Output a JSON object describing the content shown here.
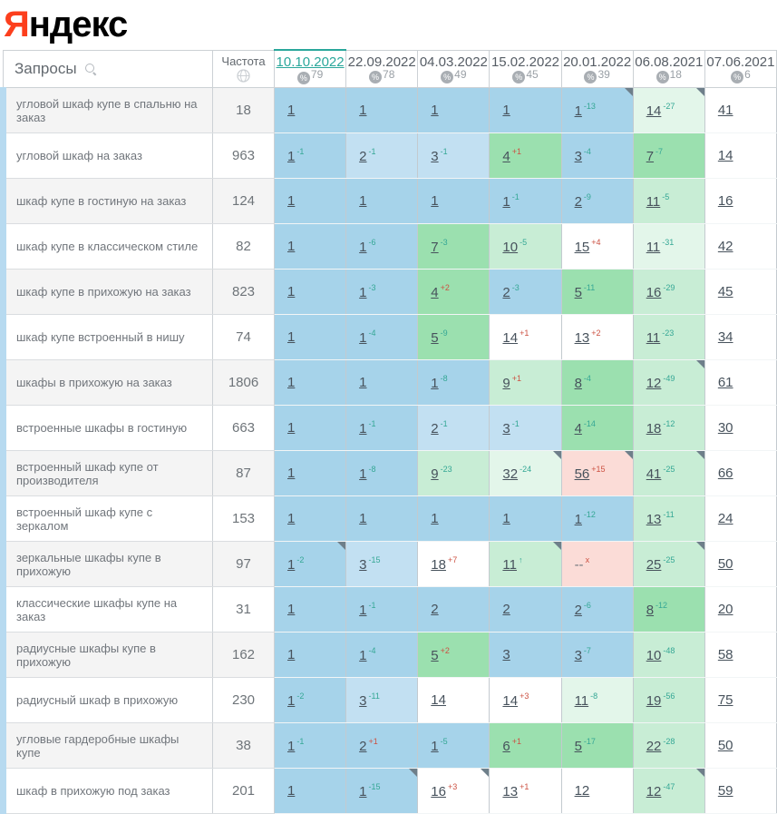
{
  "logo": {
    "first_letter": "Я",
    "rest": "ндекс"
  },
  "header": {
    "queries_label": "Запросы",
    "frequency_label": "Частота"
  },
  "columns": [
    {
      "label": "10.10.2022",
      "pct": "79",
      "current": true
    },
    {
      "label": "22.09.2022",
      "pct": "78",
      "current": false
    },
    {
      "label": "04.03.2022",
      "pct": "49",
      "current": false
    },
    {
      "label": "15.02.2022",
      "pct": "45",
      "current": false
    },
    {
      "label": "20.01.2022",
      "pct": "39",
      "current": false
    },
    {
      "label": "06.08.2021",
      "pct": "18",
      "current": false
    },
    {
      "label": "07.06.2021",
      "pct": "6",
      "current": false
    }
  ],
  "colors": {
    "logo_red": "#fc3f1d",
    "link_teal": "#2aa79b",
    "change_up": "#35a795",
    "change_down": "#cc5142",
    "cell": {
      "b1": "#a6d3ea",
      "b2": "#c2e0f2",
      "g1": "#9be0af",
      "g2": "#c8edd5",
      "g3": "#e3f6ea",
      "pk": "#fbdcd7",
      "w": "#ffffff"
    }
  },
  "rows": [
    {
      "query": "угловой шкаф купе в спальню на заказ",
      "freq": "18",
      "cells": [
        {
          "v": "1",
          "bg": "b1"
        },
        {
          "v": "1",
          "bg": "b1"
        },
        {
          "v": "1",
          "bg": "b1"
        },
        {
          "v": "1",
          "bg": "b1"
        },
        {
          "v": "1",
          "chg": "-13",
          "dir": "up",
          "bg": "b1",
          "flag": true
        },
        {
          "v": "14",
          "chg": "-27",
          "dir": "up",
          "bg": "g3",
          "flag": true
        },
        {
          "v": "41",
          "bg": "w"
        }
      ]
    },
    {
      "query": "угловой шкаф на заказ",
      "freq": "963",
      "cells": [
        {
          "v": "1",
          "chg": "-1",
          "dir": "up",
          "bg": "b1"
        },
        {
          "v": "2",
          "chg": "-1",
          "dir": "up",
          "bg": "b2"
        },
        {
          "v": "3",
          "chg": "-1",
          "dir": "up",
          "bg": "b2"
        },
        {
          "v": "4",
          "chg": "+1",
          "dir": "down",
          "bg": "g1"
        },
        {
          "v": "3",
          "chg": "-4",
          "dir": "up",
          "bg": "b1"
        },
        {
          "v": "7",
          "chg": "-7",
          "dir": "up",
          "bg": "g1"
        },
        {
          "v": "14",
          "bg": "w"
        }
      ]
    },
    {
      "query": "шкаф купе в гостиную на заказ",
      "freq": "124",
      "cells": [
        {
          "v": "1",
          "bg": "b1"
        },
        {
          "v": "1",
          "bg": "b1"
        },
        {
          "v": "1",
          "bg": "b1"
        },
        {
          "v": "1",
          "chg": "-1",
          "dir": "up",
          "bg": "b1"
        },
        {
          "v": "2",
          "chg": "-9",
          "dir": "up",
          "bg": "b1"
        },
        {
          "v": "11",
          "chg": "-5",
          "dir": "up",
          "bg": "g2"
        },
        {
          "v": "16",
          "bg": "w"
        }
      ]
    },
    {
      "query": "шкаф купе в классическом стиле",
      "freq": "82",
      "cells": [
        {
          "v": "1",
          "bg": "b1"
        },
        {
          "v": "1",
          "chg": "-6",
          "dir": "up",
          "bg": "b1"
        },
        {
          "v": "7",
          "chg": "-3",
          "dir": "up",
          "bg": "g1"
        },
        {
          "v": "10",
          "chg": "-5",
          "dir": "up",
          "bg": "g2"
        },
        {
          "v": "15",
          "chg": "+4",
          "dir": "down",
          "bg": "w"
        },
        {
          "v": "11",
          "chg": "-31",
          "dir": "up",
          "bg": "g3"
        },
        {
          "v": "42",
          "bg": "w"
        }
      ]
    },
    {
      "query": "шкаф купе в прихожую на заказ",
      "freq": "823",
      "cells": [
        {
          "v": "1",
          "bg": "b1"
        },
        {
          "v": "1",
          "chg": "-3",
          "dir": "up",
          "bg": "b1"
        },
        {
          "v": "4",
          "chg": "+2",
          "dir": "down",
          "bg": "g1"
        },
        {
          "v": "2",
          "chg": "-3",
          "dir": "up",
          "bg": "b1"
        },
        {
          "v": "5",
          "chg": "-11",
          "dir": "up",
          "bg": "g1"
        },
        {
          "v": "16",
          "chg": "-29",
          "dir": "up",
          "bg": "g2"
        },
        {
          "v": "45",
          "bg": "w"
        }
      ]
    },
    {
      "query": "шкаф купе встроенный в нишу",
      "freq": "74",
      "cells": [
        {
          "v": "1",
          "bg": "b1"
        },
        {
          "v": "1",
          "chg": "-4",
          "dir": "up",
          "bg": "b1"
        },
        {
          "v": "5",
          "chg": "-9",
          "dir": "up",
          "bg": "g1"
        },
        {
          "v": "14",
          "chg": "+1",
          "dir": "down",
          "bg": "w"
        },
        {
          "v": "13",
          "chg": "+2",
          "dir": "down",
          "bg": "w"
        },
        {
          "v": "11",
          "chg": "-23",
          "dir": "up",
          "bg": "g2"
        },
        {
          "v": "34",
          "bg": "w"
        }
      ]
    },
    {
      "query": "шкафы в прихожую на заказ",
      "freq": "1806",
      "cells": [
        {
          "v": "1",
          "bg": "b1"
        },
        {
          "v": "1",
          "bg": "b1"
        },
        {
          "v": "1",
          "chg": "-8",
          "dir": "up",
          "bg": "b1"
        },
        {
          "v": "9",
          "chg": "+1",
          "dir": "down",
          "bg": "g2"
        },
        {
          "v": "8",
          "chg": "-4",
          "dir": "up",
          "bg": "g1"
        },
        {
          "v": "12",
          "chg": "-49",
          "dir": "up",
          "bg": "g2",
          "flag": true
        },
        {
          "v": "61",
          "bg": "w"
        }
      ]
    },
    {
      "query": "встроенные шкафы в гостиную",
      "freq": "663",
      "cells": [
        {
          "v": "1",
          "bg": "b1"
        },
        {
          "v": "1",
          "chg": "-1",
          "dir": "up",
          "bg": "b1"
        },
        {
          "v": "2",
          "chg": "-1",
          "dir": "up",
          "bg": "b2"
        },
        {
          "v": "3",
          "chg": "-1",
          "dir": "up",
          "bg": "b2"
        },
        {
          "v": "4",
          "chg": "-14",
          "dir": "up",
          "bg": "g1"
        },
        {
          "v": "18",
          "chg": "-12",
          "dir": "up",
          "bg": "g2"
        },
        {
          "v": "30",
          "bg": "w"
        }
      ]
    },
    {
      "query": "встроенный шкаф купе от производителя",
      "freq": "87",
      "cells": [
        {
          "v": "1",
          "bg": "b1"
        },
        {
          "v": "1",
          "chg": "-8",
          "dir": "up",
          "bg": "b1"
        },
        {
          "v": "9",
          "chg": "-23",
          "dir": "up",
          "bg": "g2"
        },
        {
          "v": "32",
          "chg": "-24",
          "dir": "up",
          "bg": "g3",
          "flag": true
        },
        {
          "v": "56",
          "chg": "+15",
          "dir": "down",
          "bg": "pk",
          "flag": true
        },
        {
          "v": "41",
          "chg": "-25",
          "dir": "up",
          "bg": "g2",
          "flag": true
        },
        {
          "v": "66",
          "bg": "w"
        }
      ]
    },
    {
      "query": "встроенный шкаф купе с зеркалом",
      "freq": "153",
      "cells": [
        {
          "v": "1",
          "bg": "b1"
        },
        {
          "v": "1",
          "bg": "b1"
        },
        {
          "v": "1",
          "bg": "b1"
        },
        {
          "v": "1",
          "bg": "b1"
        },
        {
          "v": "1",
          "chg": "-12",
          "dir": "up",
          "bg": "b1"
        },
        {
          "v": "13",
          "chg": "-11",
          "dir": "up",
          "bg": "g2"
        },
        {
          "v": "24",
          "bg": "w"
        }
      ]
    },
    {
      "query": "зеркальные шкафы купе в прихожую",
      "freq": "97",
      "cells": [
        {
          "v": "1",
          "chg": "-2",
          "dir": "up",
          "bg": "b1",
          "flag": true
        },
        {
          "v": "3",
          "chg": "-15",
          "dir": "up",
          "bg": "b2"
        },
        {
          "v": "18",
          "chg": "+7",
          "dir": "down",
          "bg": "w"
        },
        {
          "v": "11",
          "chg": "↑",
          "dir": "up",
          "bg": "g2",
          "flag": true
        },
        {
          "v": "--",
          "chg": "x",
          "dir": "down",
          "bg": "pk"
        },
        {
          "v": "25",
          "chg": "-25",
          "dir": "up",
          "bg": "g2",
          "flag": true
        },
        {
          "v": "50",
          "bg": "w"
        }
      ]
    },
    {
      "query": "классические шкафы купе на заказ",
      "freq": "31",
      "cells": [
        {
          "v": "1",
          "bg": "b1"
        },
        {
          "v": "1",
          "chg": "-1",
          "dir": "up",
          "bg": "b1"
        },
        {
          "v": "2",
          "bg": "b1"
        },
        {
          "v": "2",
          "bg": "b1"
        },
        {
          "v": "2",
          "chg": "-6",
          "dir": "up",
          "bg": "b1"
        },
        {
          "v": "8",
          "chg": "-12",
          "dir": "up",
          "bg": "g1"
        },
        {
          "v": "20",
          "bg": "w"
        }
      ]
    },
    {
      "query": "радиусные шкафы купе в прихожую",
      "freq": "162",
      "cells": [
        {
          "v": "1",
          "bg": "b1"
        },
        {
          "v": "1",
          "chg": "-4",
          "dir": "up",
          "bg": "b1"
        },
        {
          "v": "5",
          "chg": "+2",
          "dir": "down",
          "bg": "g1"
        },
        {
          "v": "3",
          "bg": "b1"
        },
        {
          "v": "3",
          "chg": "-7",
          "dir": "up",
          "bg": "b1"
        },
        {
          "v": "10",
          "chg": "-48",
          "dir": "up",
          "bg": "g2"
        },
        {
          "v": "58",
          "bg": "w"
        }
      ]
    },
    {
      "query": "радиусный шкаф в прихожую",
      "freq": "230",
      "cells": [
        {
          "v": "1",
          "chg": "-2",
          "dir": "up",
          "bg": "b1"
        },
        {
          "v": "3",
          "chg": "-11",
          "dir": "up",
          "bg": "b2"
        },
        {
          "v": "14",
          "bg": "w"
        },
        {
          "v": "14",
          "chg": "+3",
          "dir": "down",
          "bg": "w"
        },
        {
          "v": "11",
          "chg": "-8",
          "dir": "up",
          "bg": "g3"
        },
        {
          "v": "19",
          "chg": "-56",
          "dir": "up",
          "bg": "g2"
        },
        {
          "v": "75",
          "bg": "w"
        }
      ]
    },
    {
      "query": "угловые гардеробные шкафы купе",
      "freq": "38",
      "cells": [
        {
          "v": "1",
          "chg": "-1",
          "dir": "up",
          "bg": "b1"
        },
        {
          "v": "2",
          "chg": "+1",
          "dir": "down",
          "bg": "b1"
        },
        {
          "v": "1",
          "chg": "-5",
          "dir": "up",
          "bg": "b1"
        },
        {
          "v": "6",
          "chg": "+1",
          "dir": "down",
          "bg": "g1"
        },
        {
          "v": "5",
          "chg": "-17",
          "dir": "up",
          "bg": "g1"
        },
        {
          "v": "22",
          "chg": "-28",
          "dir": "up",
          "bg": "g2"
        },
        {
          "v": "50",
          "bg": "w"
        }
      ]
    },
    {
      "query": "шкаф в прихожую под заказ",
      "freq": "201",
      "cells": [
        {
          "v": "1",
          "bg": "b1"
        },
        {
          "v": "1",
          "chg": "-15",
          "dir": "up",
          "bg": "b1",
          "flag": true
        },
        {
          "v": "16",
          "chg": "+3",
          "dir": "down",
          "bg": "w",
          "flag": true
        },
        {
          "v": "13",
          "chg": "+1",
          "dir": "down",
          "bg": "w"
        },
        {
          "v": "12",
          "bg": "w"
        },
        {
          "v": "12",
          "chg": "-47",
          "dir": "up",
          "bg": "g2",
          "flag": true
        },
        {
          "v": "59",
          "bg": "w"
        }
      ]
    }
  ]
}
